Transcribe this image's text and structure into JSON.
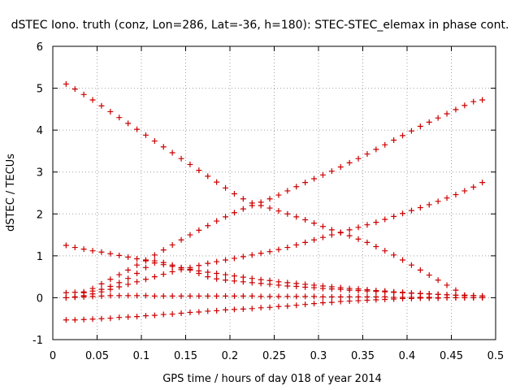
{
  "chart_data": {
    "type": "scatter",
    "title": "dSTEC Iono. truth (conz, Lon=286, Lat=-36, h=180): STEC-STEC_elemax in phase cont.",
    "xlabel": "GPS time / hours of day 018 of year 2014",
    "ylabel": "dSTEC  / TECUs",
    "xlim": [
      0,
      0.5
    ],
    "ylim": [
      -1,
      6
    ],
    "xticks": [
      0,
      0.05,
      0.1,
      0.15,
      0.2,
      0.25,
      0.3,
      0.35,
      0.4,
      0.45,
      0.5
    ],
    "yticks": [
      -1,
      0,
      1,
      2,
      3,
      4,
      5,
      6
    ],
    "xtick_labels": [
      "0",
      "0.05",
      "0.1",
      "0.15",
      "0.2",
      "0.25",
      "0.3",
      "0.35",
      "0.4",
      "0.45",
      "0.5"
    ],
    "ytick_labels": [
      "-1",
      "0",
      "1",
      "2",
      "3",
      "4",
      "5",
      "6"
    ],
    "grid": true,
    "marker": "+",
    "color": "#cc0000",
    "series": [
      {
        "x": [
          0.015,
          0.025,
          0.035,
          0.045,
          0.055,
          0.065,
          0.075,
          0.085,
          0.095,
          0.105,
          0.115,
          0.125,
          0.135,
          0.145,
          0.155,
          0.165,
          0.175,
          0.185,
          0.195,
          0.205,
          0.215,
          0.225,
          0.235,
          0.245,
          0.255,
          0.265,
          0.275,
          0.285,
          0.295,
          0.305,
          0.315,
          0.325,
          0.335,
          0.345,
          0.355,
          0.365,
          0.375,
          0.385,
          0.395,
          0.405,
          0.415,
          0.425,
          0.435,
          0.445,
          0.455,
          0.465
        ],
        "y": [
          5.1,
          4.98,
          4.85,
          4.72,
          4.58,
          4.44,
          4.3,
          4.16,
          4.02,
          3.88,
          3.74,
          3.6,
          3.46,
          3.32,
          3.18,
          3.04,
          2.9,
          2.76,
          2.62,
          2.48,
          2.36,
          2.26,
          2.2,
          2.14,
          2.07,
          2.0,
          1.93,
          1.86,
          1.78,
          1.7,
          1.62,
          1.55,
          1.48,
          1.4,
          1.32,
          1.22,
          1.12,
          1.02,
          0.9,
          0.78,
          0.66,
          0.54,
          0.42,
          0.3,
          0.18,
          0.06
        ]
      },
      {
        "x": [
          0.035,
          0.045,
          0.055,
          0.065,
          0.075,
          0.085,
          0.095,
          0.105,
          0.115,
          0.125,
          0.135,
          0.145,
          0.155,
          0.165,
          0.175,
          0.185,
          0.195,
          0.205,
          0.215,
          0.225,
          0.235,
          0.245,
          0.255,
          0.265,
          0.275,
          0.285,
          0.295,
          0.305,
          0.315,
          0.325,
          0.335,
          0.345,
          0.355,
          0.365,
          0.375,
          0.385,
          0.395,
          0.405,
          0.415,
          0.425,
          0.435,
          0.445,
          0.455,
          0.465,
          0.475,
          0.485
        ],
        "y": [
          0.12,
          0.22,
          0.33,
          0.44,
          0.55,
          0.66,
          0.78,
          0.9,
          1.02,
          1.14,
          1.26,
          1.38,
          1.5,
          1.61,
          1.72,
          1.83,
          1.93,
          2.03,
          2.12,
          2.2,
          2.28,
          2.36,
          2.45,
          2.55,
          2.65,
          2.75,
          2.84,
          2.93,
          3.02,
          3.12,
          3.22,
          3.32,
          3.43,
          3.54,
          3.65,
          3.76,
          3.87,
          3.98,
          4.09,
          4.19,
          4.29,
          4.39,
          4.49,
          4.59,
          4.68,
          4.72
        ]
      },
      {
        "x": [
          0.015,
          0.025,
          0.035,
          0.045,
          0.055,
          0.065,
          0.075,
          0.085,
          0.095,
          0.105,
          0.115,
          0.125,
          0.135,
          0.145,
          0.155,
          0.165,
          0.175,
          0.185,
          0.195,
          0.205,
          0.215,
          0.225,
          0.235,
          0.245,
          0.255,
          0.265,
          0.275,
          0.285,
          0.295,
          0.305,
          0.315,
          0.325,
          0.335,
          0.345,
          0.355,
          0.365,
          0.375,
          0.385,
          0.395,
          0.405,
          0.415,
          0.425,
          0.435,
          0.445,
          0.455,
          0.465,
          0.475,
          0.485
        ],
        "y": [
          0.0,
          0.02,
          0.05,
          0.09,
          0.14,
          0.2,
          0.26,
          0.32,
          0.38,
          0.44,
          0.5,
          0.56,
          0.62,
          0.67,
          0.72,
          0.77,
          0.82,
          0.86,
          0.9,
          0.94,
          0.98,
          1.02,
          1.06,
          1.1,
          1.15,
          1.2,
          1.26,
          1.32,
          1.38,
          1.44,
          1.5,
          1.56,
          1.62,
          1.68,
          1.74,
          1.8,
          1.87,
          1.94,
          2.01,
          2.08,
          2.15,
          2.22,
          2.3,
          2.38,
          2.46,
          2.55,
          2.64,
          2.75
        ]
      },
      {
        "x": [
          0.015,
          0.025,
          0.035,
          0.045,
          0.055,
          0.065,
          0.075,
          0.085,
          0.095,
          0.105,
          0.115,
          0.125,
          0.135,
          0.145,
          0.155,
          0.165,
          0.175,
          0.185,
          0.195,
          0.205,
          0.215,
          0.225,
          0.235,
          0.245,
          0.255,
          0.265,
          0.275,
          0.285,
          0.295,
          0.305,
          0.315,
          0.325,
          0.335,
          0.345,
          0.355,
          0.365,
          0.375,
          0.385,
          0.395,
          0.405,
          0.415,
          0.425,
          0.435,
          0.445,
          0.455,
          0.465,
          0.475,
          0.485
        ],
        "y": [
          1.25,
          1.2,
          1.16,
          1.12,
          1.09,
          1.05,
          1.01,
          0.97,
          0.93,
          0.88,
          0.83,
          0.79,
          0.75,
          0.71,
          0.68,
          0.64,
          0.61,
          0.58,
          0.55,
          0.52,
          0.49,
          0.46,
          0.43,
          0.41,
          0.38,
          0.36,
          0.34,
          0.32,
          0.3,
          0.28,
          0.26,
          0.24,
          0.22,
          0.21,
          0.19,
          0.17,
          0.16,
          0.14,
          0.13,
          0.11,
          0.1,
          0.09,
          0.08,
          0.07,
          0.06,
          0.06,
          0.05,
          0.04
        ]
      },
      {
        "x": [
          0.015,
          0.025,
          0.035,
          0.045,
          0.055,
          0.065,
          0.075,
          0.085,
          0.095,
          0.105,
          0.115,
          0.125,
          0.135,
          0.145,
          0.155,
          0.165,
          0.175,
          0.185,
          0.195,
          0.205,
          0.215,
          0.225,
          0.235,
          0.245,
          0.255,
          0.265,
          0.275,
          0.285,
          0.295,
          0.305,
          0.315,
          0.325,
          0.335,
          0.345,
          0.355,
          0.365,
          0.375,
          0.385,
          0.395,
          0.405,
          0.415,
          0.425,
          0.435,
          0.445,
          0.455,
          0.465,
          0.475,
          0.485
        ],
        "y": [
          0.12,
          0.13,
          0.14,
          0.16,
          0.2,
          0.27,
          0.36,
          0.46,
          0.58,
          0.72,
          0.88,
          0.84,
          0.78,
          0.72,
          0.66,
          0.58,
          0.5,
          0.45,
          0.42,
          0.4,
          0.38,
          0.36,
          0.34,
          0.32,
          0.3,
          0.28,
          0.27,
          0.25,
          0.24,
          0.22,
          0.21,
          0.2,
          0.18,
          0.17,
          0.16,
          0.15,
          0.14,
          0.13,
          0.12,
          0.11,
          0.1,
          0.09,
          0.08,
          0.07,
          0.06,
          0.05,
          0.05,
          0.04
        ]
      },
      {
        "x": [
          0.015,
          0.025,
          0.035,
          0.045,
          0.055,
          0.065,
          0.075,
          0.085,
          0.095,
          0.105,
          0.115,
          0.125,
          0.135,
          0.145,
          0.155,
          0.165,
          0.175,
          0.185,
          0.195,
          0.205,
          0.215,
          0.225,
          0.235,
          0.245,
          0.255,
          0.265,
          0.275,
          0.285,
          0.295,
          0.305,
          0.315,
          0.325,
          0.335,
          0.345,
          0.355,
          0.365,
          0.375,
          0.385,
          0.395,
          0.405,
          0.415,
          0.425,
          0.435,
          0.445,
          0.455,
          0.465,
          0.475,
          0.485
        ],
        "y": [
          0.0,
          0.01,
          0.02,
          0.03,
          0.04,
          0.05,
          0.05,
          0.05,
          0.05,
          0.05,
          0.04,
          0.04,
          0.04,
          0.04,
          0.04,
          0.04,
          0.04,
          0.04,
          0.04,
          0.04,
          0.04,
          0.04,
          0.03,
          0.03,
          0.03,
          0.03,
          0.03,
          0.03,
          0.03,
          0.02,
          0.02,
          0.02,
          0.02,
          0.02,
          0.02,
          0.02,
          0.02,
          0.01,
          0.01,
          0.01,
          0.01,
          0.01,
          0.0,
          0.0,
          0.0,
          0.0,
          0.0,
          0.0
        ]
      },
      {
        "x": [
          0.015,
          0.025,
          0.035,
          0.045,
          0.055,
          0.065,
          0.075,
          0.085,
          0.095,
          0.105,
          0.115,
          0.125,
          0.135,
          0.145,
          0.155,
          0.165,
          0.175,
          0.185,
          0.195,
          0.205,
          0.215,
          0.225,
          0.235,
          0.245,
          0.255,
          0.265,
          0.275,
          0.285,
          0.295,
          0.305,
          0.315,
          0.325,
          0.335,
          0.345,
          0.355,
          0.365,
          0.375,
          0.385,
          0.395,
          0.405,
          0.415,
          0.425,
          0.435,
          0.445,
          0.455,
          0.465,
          0.475,
          0.485
        ],
        "y": [
          -0.53,
          -0.53,
          -0.52,
          -0.51,
          -0.5,
          -0.49,
          -0.47,
          -0.46,
          -0.45,
          -0.43,
          -0.42,
          -0.4,
          -0.39,
          -0.37,
          -0.35,
          -0.34,
          -0.32,
          -0.31,
          -0.29,
          -0.28,
          -0.27,
          -0.26,
          -0.24,
          -0.23,
          -0.21,
          -0.2,
          -0.18,
          -0.16,
          -0.14,
          -0.12,
          -0.11,
          -0.09,
          -0.08,
          -0.07,
          -0.06,
          -0.05,
          -0.04,
          -0.03,
          -0.02,
          -0.02,
          -0.01,
          -0.01,
          -0.01,
          0.0,
          0.0,
          0.0,
          0.0,
          0.0
        ]
      }
    ]
  }
}
